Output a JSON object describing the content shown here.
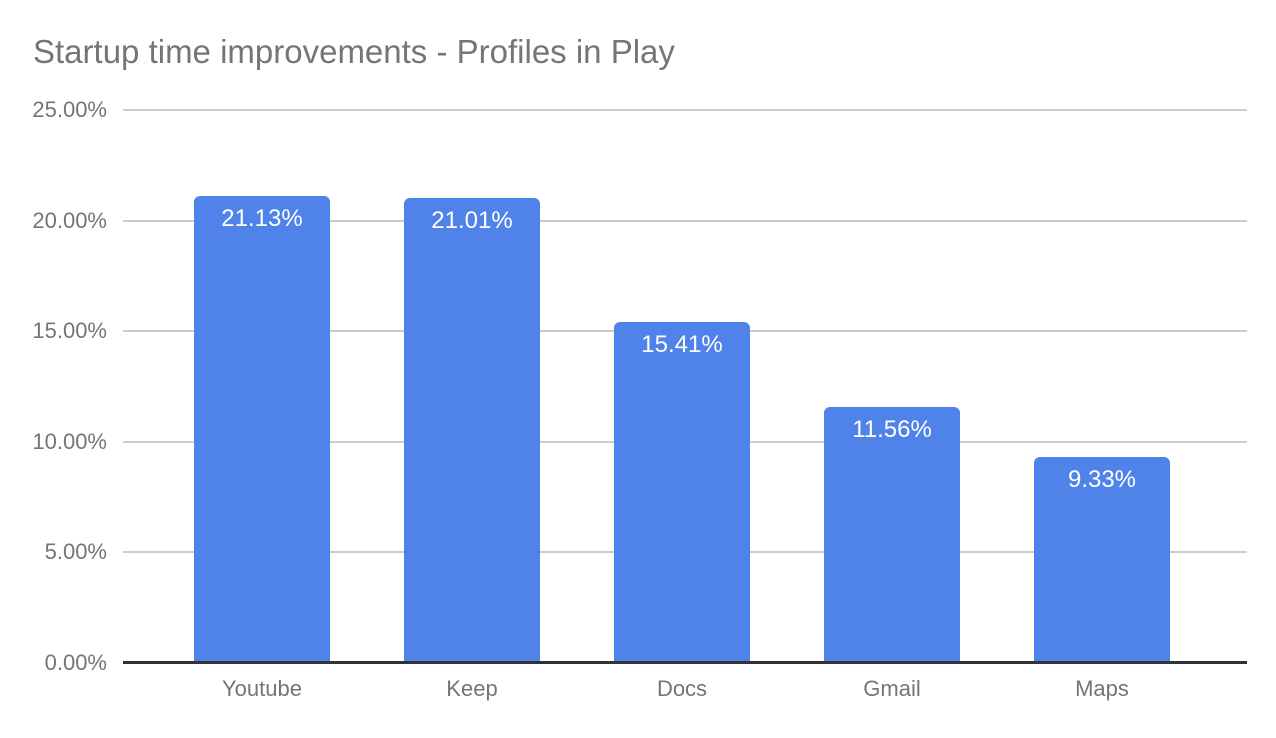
{
  "chart": {
    "title": "Startup time improvements - Profiles in Play"
  },
  "chart_data": {
    "type": "bar",
    "title": "Startup time improvements - Profiles in Play",
    "categories": [
      "Youtube",
      "Keep",
      "Docs",
      "Gmail",
      "Maps"
    ],
    "values": [
      21.13,
      21.01,
      15.41,
      11.56,
      9.33
    ],
    "value_labels": [
      "21.13%",
      "21.01%",
      "15.41%",
      "11.56%",
      "9.33%"
    ],
    "xlabel": "",
    "ylabel": "",
    "ylim": [
      0,
      25
    ],
    "y_ticks": [
      {
        "value": 0,
        "label": "0.00%"
      },
      {
        "value": 5,
        "label": "5.00%"
      },
      {
        "value": 10,
        "label": "10.00%"
      },
      {
        "value": 15,
        "label": "15.00%"
      },
      {
        "value": 20,
        "label": "20.00%"
      },
      {
        "value": 25,
        "label": "25.00%"
      }
    ],
    "grid": true,
    "legend": "none",
    "colors": {
      "bar": "#4F83EA",
      "bar_value_label": "#ffffff",
      "title_text": "#757575",
      "axis_text": "#757575",
      "gridline": "#cccccc",
      "axis_line": "#333333"
    }
  }
}
